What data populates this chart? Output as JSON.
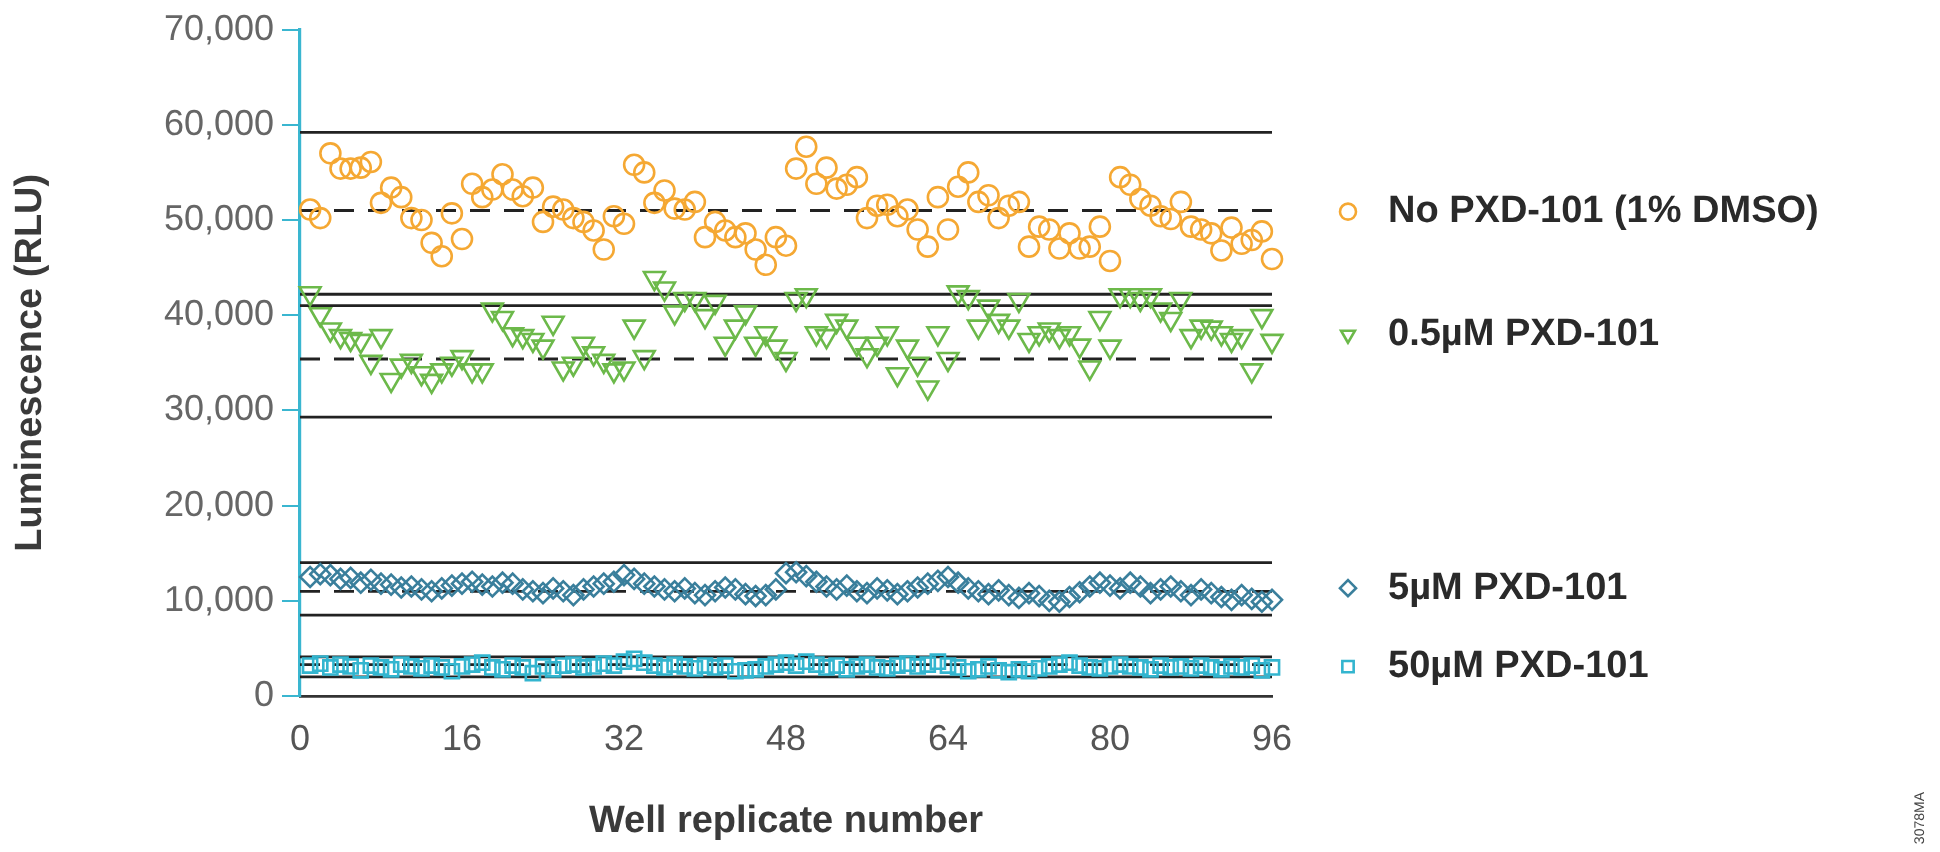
{
  "chart_data": {
    "type": "scatter",
    "xlabel": "Well replicate number",
    "ylabel": "Luminescence (RLU)",
    "x": [
      1,
      2,
      3,
      4,
      5,
      6,
      7,
      8,
      9,
      10,
      11,
      12,
      13,
      14,
      15,
      16,
      17,
      18,
      19,
      20,
      21,
      22,
      23,
      24,
      25,
      26,
      27,
      28,
      29,
      30,
      31,
      32,
      33,
      34,
      35,
      36,
      37,
      38,
      39,
      40,
      41,
      42,
      43,
      44,
      45,
      46,
      47,
      48,
      49,
      50,
      51,
      52,
      53,
      54,
      55,
      56,
      57,
      58,
      59,
      60,
      61,
      62,
      63,
      64,
      65,
      66,
      67,
      68,
      69,
      70,
      71,
      72,
      73,
      74,
      75,
      76,
      77,
      78,
      79,
      80,
      81,
      82,
      83,
      84,
      85,
      86,
      87,
      88,
      89,
      90,
      91,
      92,
      93,
      94,
      95,
      96
    ],
    "xlim": [
      0,
      96
    ],
    "xticks": [
      0,
      16,
      32,
      48,
      64,
      80,
      96
    ],
    "ylim": [
      0,
      70000
    ],
    "yticks": [
      0,
      {
        "value": 10000,
        "label": "10,000"
      },
      {
        "value": 20000,
        "label": "20,000"
      },
      {
        "value": 30000,
        "label": "30,000"
      },
      {
        "value": 40000,
        "label": "40,000"
      },
      {
        "value": 50000,
        "label": "50,000"
      },
      {
        "value": 60000,
        "label": "60,000"
      },
      {
        "value": 70000,
        "label": "70,000"
      }
    ],
    "grid": false,
    "legend": "right",
    "series": [
      {
        "name": "No PXD-101 (1% DMSO)",
        "color": "#f5a833",
        "marker": "circle",
        "values": [
          51100,
          50200,
          57000,
          55400,
          55400,
          55500,
          56100,
          51800,
          53400,
          52400,
          50200,
          50000,
          47600,
          46200,
          50700,
          48000,
          53800,
          52400,
          53200,
          54800,
          53200,
          52500,
          53400,
          49800,
          51400,
          51100,
          50200,
          49800,
          48900,
          46900,
          50400,
          49600,
          55800,
          55000,
          51800,
          53100,
          51200,
          51100,
          51900,
          48200,
          49800,
          48900,
          48200,
          48600,
          46900,
          45300,
          48200,
          47300,
          55400,
          57700,
          53800,
          55500,
          53300,
          53700,
          54500,
          50200,
          51500,
          51600,
          50400,
          51100,
          49000,
          47200,
          52400,
          49000,
          53500,
          55000,
          51900,
          52600,
          50200,
          51500,
          51900,
          47200,
          49300,
          49000,
          47000,
          48600,
          47000,
          47200,
          49300,
          45700,
          54500,
          53700,
          52200,
          51500,
          50400,
          50100,
          51900,
          49300,
          49000,
          48600,
          46800,
          49200,
          47500,
          47900,
          48800,
          45900
        ]
      },
      {
        "name": "0.5µM PXD-101",
        "color": "#6cb94a",
        "marker": "triangle",
        "values": [
          42300,
          40100,
          38500,
          37800,
          37500,
          37300,
          35100,
          37800,
          33200,
          34700,
          35200,
          33900,
          33100,
          34200,
          34900,
          35600,
          34200,
          34200,
          40600,
          39700,
          38000,
          37800,
          37400,
          36700,
          39200,
          34400,
          34900,
          37000,
          36000,
          35200,
          34200,
          34400,
          38800,
          35600,
          43900,
          42800,
          40300,
          41700,
          41700,
          39900,
          41400,
          37000,
          38800,
          40300,
          37000,
          38100,
          36700,
          35400,
          41700,
          42100,
          38100,
          37800,
          39400,
          38800,
          37000,
          35800,
          37000,
          38100,
          33800,
          36700,
          34900,
          32400,
          38100,
          35400,
          42400,
          41900,
          38800,
          40900,
          39400,
          38800,
          41600,
          37400,
          38100,
          38500,
          37800,
          38100,
          36800,
          34500,
          39700,
          36700,
          42100,
          42100,
          41700,
          42100,
          40600,
          39600,
          41700,
          37800,
          38800,
          38700,
          38100,
          37400,
          37800,
          34200,
          39900,
          37300
        ]
      },
      {
        "name": "5µM PXD-101",
        "color": "#3a7f9c",
        "marker": "diamond",
        "values": [
          12500,
          12800,
          12700,
          12300,
          12400,
          11900,
          12200,
          11800,
          11700,
          11400,
          11500,
          11200,
          11000,
          11300,
          11600,
          11800,
          12000,
          11700,
          11500,
          11900,
          11800,
          11200,
          11000,
          10800,
          11300,
          11000,
          10600,
          11200,
          11500,
          11800,
          12000,
          12700,
          12300,
          11800,
          11500,
          11200,
          11000,
          11300,
          10800,
          10600,
          11000,
          11400,
          11200,
          10700,
          10500,
          10600,
          11200,
          12900,
          13000,
          12600,
          12000,
          11500,
          11200,
          11600,
          11000,
          10800,
          11300,
          11100,
          10700,
          11000,
          11400,
          11800,
          12100,
          12500,
          11900,
          11300,
          11000,
          10700,
          11100,
          10600,
          10300,
          10800,
          10500,
          10000,
          9900,
          10400,
          10900,
          11500,
          11900,
          11600,
          11300,
          11900,
          11500,
          10800,
          11200,
          11500,
          11000,
          10600,
          11200,
          10800,
          10400,
          10100,
          10600,
          10200,
          9900,
          10100
        ]
      },
      {
        "name": "50µM PXD-101",
        "color": "#33b5cf",
        "marker": "square",
        "values": [
          3200,
          3400,
          3000,
          3300,
          3100,
          2700,
          3200,
          3000,
          2800,
          3300,
          3100,
          2900,
          3200,
          3000,
          2600,
          3100,
          3300,
          3500,
          3000,
          2800,
          3200,
          3000,
          2400,
          3100,
          2800,
          3200,
          3300,
          3000,
          3100,
          3400,
          3200,
          3600,
          3900,
          3500,
          3200,
          3000,
          3300,
          3100,
          2900,
          3200,
          3000,
          3200,
          2600,
          2700,
          2800,
          3100,
          3300,
          3500,
          3200,
          3600,
          3300,
          3000,
          3200,
          2800,
          3100,
          3300,
          3000,
          2900,
          3200,
          3400,
          3100,
          3300,
          3600,
          3200,
          3000,
          2600,
          2800,
          3100,
          2700,
          2500,
          2800,
          2600,
          2900,
          3100,
          3300,
          3500,
          3200,
          3000,
          2900,
          3100,
          3300,
          3100,
          3000,
          2800,
          3200,
          3000,
          3100,
          2900,
          3200,
          3000,
          2800,
          3100,
          3000,
          3200,
          2700,
          3000
        ]
      }
    ],
    "ref_lines": [
      {
        "axis": "y",
        "value": 59200,
        "color": "#222222",
        "line_style": "solid"
      },
      {
        "axis": "y",
        "value": 51000,
        "color": "#222222",
        "line_style": "dashed"
      },
      {
        "axis": "y",
        "value": 42200,
        "color": "#222222",
        "line_style": "solid"
      },
      {
        "axis": "y",
        "value": 41000,
        "color": "#222222",
        "line_style": "solid"
      },
      {
        "axis": "y",
        "value": 35400,
        "color": "#222222",
        "line_style": "dashed"
      },
      {
        "axis": "y",
        "value": 29300,
        "color": "#222222",
        "line_style": "solid"
      },
      {
        "axis": "y",
        "value": 14000,
        "color": "#222222",
        "line_style": "solid"
      },
      {
        "axis": "y",
        "value": 11000,
        "color": "#222222",
        "line_style": "dashed"
      },
      {
        "axis": "y",
        "value": 8500,
        "color": "#222222",
        "line_style": "solid"
      },
      {
        "axis": "y",
        "value": 4100,
        "color": "#222222",
        "line_style": "solid"
      },
      {
        "axis": "y",
        "value": 3300,
        "color": "#222222",
        "line_style": "dashed"
      },
      {
        "axis": "y",
        "value": 2000,
        "color": "#222222",
        "line_style": "solid"
      }
    ],
    "annotations": [
      "3078MA"
    ]
  }
}
